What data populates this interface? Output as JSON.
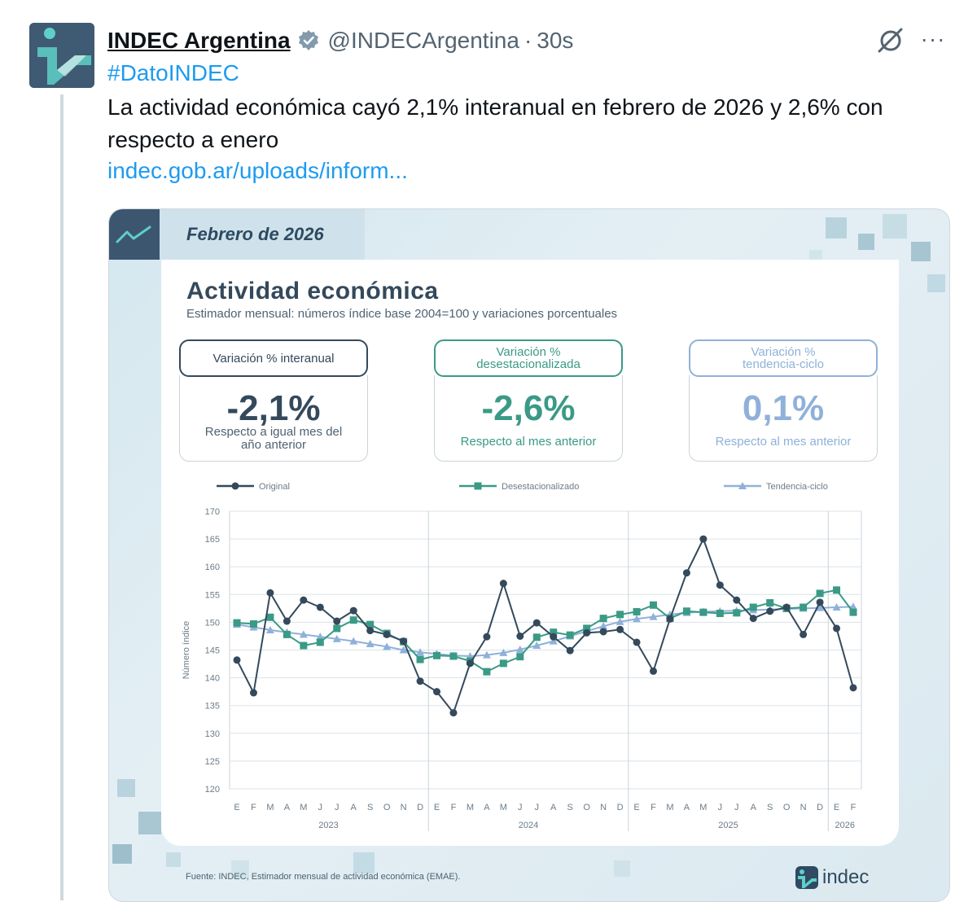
{
  "tweet": {
    "display_name": "INDEC Argentina",
    "handle": "@INDECArgentina",
    "separator": "·",
    "time": "30s",
    "more": "···",
    "hashtag": "#DatoINDEC",
    "text": "La actividad económica cayó 2,1% interanual en febrero de 2026 y 2,6% con respecto a enero",
    "link": "indec.gob.ar/uploads/inform..."
  },
  "media": {
    "date_label": "Febrero de 2026",
    "title": "Actividad económica",
    "subtitle": "Estimador mensual: números índice base 2004=100 y variaciones porcentuales",
    "cards": [
      {
        "header": [
          "Variación % interanual"
        ],
        "value": "-2,1%",
        "note": [
          "Respecto a igual mes del",
          "año anterior"
        ],
        "color": "#34495b"
      },
      {
        "header": [
          "Variación %",
          "desestacionalizada"
        ],
        "value": "-2,6%",
        "note": [
          "Respecto al mes anterior"
        ],
        "color": "#3a9a85"
      },
      {
        "header": [
          "Variación %",
          "tendencia-ciclo"
        ],
        "value": "0,1%",
        "note": [
          "Respecto al mes anterior"
        ],
        "color": "#8fb1d9"
      }
    ],
    "source": "Fuente: INDEC, Estimador mensual de actividad económica (EMAE).",
    "brand": "indec"
  },
  "chart_data": {
    "type": "line",
    "ylabel": "Número índice",
    "ylim": [
      120,
      170
    ],
    "yticks": [
      120,
      125,
      130,
      135,
      140,
      145,
      150,
      155,
      160,
      165,
      170
    ],
    "month_labels": [
      "E",
      "F",
      "M",
      "A",
      "M",
      "J",
      "J",
      "A",
      "S",
      "O",
      "N",
      "D",
      "E",
      "F",
      "M",
      "A",
      "M",
      "J",
      "J",
      "A",
      "S",
      "O",
      "N",
      "D",
      "E",
      "F",
      "M",
      "A",
      "M",
      "J",
      "J",
      "A",
      "S",
      "O",
      "N",
      "D",
      "E",
      "F"
    ],
    "year_labels": [
      {
        "label": "2023",
        "index": 5.5
      },
      {
        "label": "2024",
        "index": 17.5
      },
      {
        "label": "2025",
        "index": 29.5
      },
      {
        "label": "2026",
        "index": 36.5
      }
    ],
    "legend_position": "top",
    "grid": true,
    "series": [
      {
        "name": "Original",
        "color": "#34495b",
        "marker": "circle",
        "values": [
          143.2,
          137.3,
          155.3,
          150.2,
          154.0,
          152.7,
          150.2,
          152.1,
          148.5,
          147.8,
          146.6,
          139.4,
          137.5,
          133.7,
          142.6,
          147.4,
          157.0,
          147.5,
          149.9,
          147.4,
          144.9,
          148.1,
          148.3,
          148.7,
          146.4,
          141.2,
          150.6,
          158.9,
          165.0,
          156.7,
          154.0,
          150.7,
          152.0,
          152.7,
          147.8,
          153.6,
          148.9,
          138.2
        ]
      },
      {
        "name": "Desestacionalizado",
        "color": "#3a9a85",
        "marker": "square",
        "values": [
          149.9,
          149.7,
          150.9,
          147.8,
          145.8,
          146.4,
          148.9,
          150.4,
          149.6,
          148.0,
          146.5,
          143.3,
          144.0,
          143.9,
          143.0,
          141.1,
          142.6,
          143.8,
          147.3,
          148.2,
          147.7,
          148.9,
          150.7,
          151.4,
          151.9,
          153.1,
          150.7,
          152.0,
          151.8,
          151.6,
          151.7,
          152.7,
          153.5,
          152.5,
          152.7,
          155.2,
          155.8,
          151.8
        ]
      },
      {
        "name": "Tendencia-ciclo",
        "color": "#8fb1d9",
        "marker": "triangle",
        "values": [
          149.6,
          149.1,
          148.6,
          148.2,
          147.8,
          147.4,
          147.0,
          146.6,
          146.1,
          145.6,
          145.0,
          144.6,
          144.3,
          144.0,
          143.9,
          144.1,
          144.5,
          145.1,
          145.8,
          146.6,
          147.5,
          148.4,
          149.3,
          150.1,
          150.6,
          151.0,
          151.4,
          151.7,
          151.9,
          152.0,
          152.1,
          152.2,
          152.3,
          152.4,
          152.5,
          152.6,
          152.7,
          152.8
        ]
      }
    ]
  }
}
